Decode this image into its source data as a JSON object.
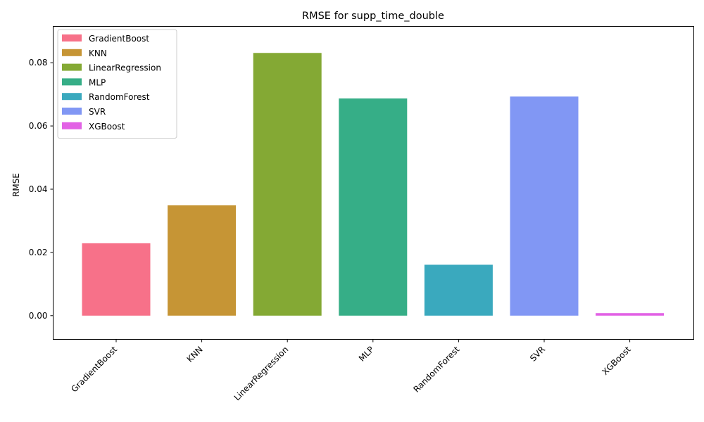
{
  "chart_data": {
    "type": "bar",
    "title": "RMSE for supp_time_double",
    "xlabel": "",
    "ylabel": "RMSE",
    "categories": [
      "GradientBoost",
      "KNN",
      "LinearRegression",
      "MLP",
      "RandomForest",
      "SVR",
      "XGBoost"
    ],
    "values": [
      0.0229,
      0.0349,
      0.0831,
      0.0687,
      0.0161,
      0.0693,
      0.0008
    ],
    "colors": [
      "#f77189",
      "#c69535",
      "#84a934",
      "#36ae87",
      "#3aa9be",
      "#8197f4",
      "#e262e5"
    ],
    "ylim": [
      -0.0075,
      0.0915
    ],
    "yticks": [
      0.0,
      0.02,
      0.04,
      0.06,
      0.08
    ],
    "ytick_labels": [
      "0.00",
      "0.02",
      "0.04",
      "0.06",
      "0.08"
    ],
    "legend": {
      "placement": "top-left",
      "entries": [
        "GradientBoost",
        "KNN",
        "LinearRegression",
        "MLP",
        "RandomForest",
        "SVR",
        "XGBoost"
      ]
    },
    "grid": false
  }
}
